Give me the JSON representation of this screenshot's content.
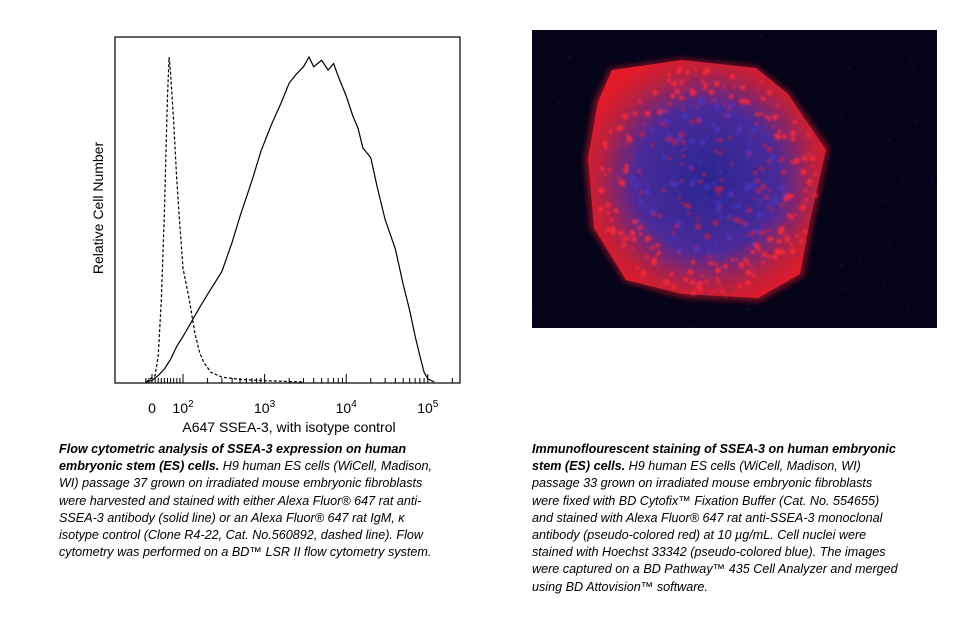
{
  "chart_data": {
    "type": "area",
    "xlabel": "A647 SSEA-3, with isotype control",
    "ylabel": "Relative Cell Number",
    "x_scale": "biexponential",
    "xlim": [
      -20,
      300000
    ],
    "ylim": [
      0,
      100
    ],
    "x_tick_labels": [
      {
        "value": 0,
        "text": "0"
      },
      {
        "value": 100,
        "base": "10",
        "exp": "2"
      },
      {
        "value": 1000,
        "base": "10",
        "exp": "3"
      },
      {
        "value": 10000,
        "base": "10",
        "exp": "4"
      },
      {
        "value": 100000,
        "base": "10",
        "exp": "5"
      }
    ],
    "grid": false,
    "series": [
      {
        "style": "solid",
        "points": [
          [
            -20,
            0
          ],
          [
            0,
            0.5
          ],
          [
            20,
            2
          ],
          [
            40,
            4
          ],
          [
            60,
            7
          ],
          [
            80,
            11
          ],
          [
            100,
            14
          ],
          [
            130,
            19
          ],
          [
            160,
            23
          ],
          [
            200,
            27
          ],
          [
            300,
            34
          ],
          [
            400,
            43
          ],
          [
            500,
            51
          ],
          [
            700,
            62
          ],
          [
            900,
            71
          ],
          [
            1200,
            79
          ],
          [
            1600,
            86
          ],
          [
            2000,
            92
          ],
          [
            2500,
            95
          ],
          [
            3000,
            97
          ],
          [
            3500,
            100
          ],
          [
            4000,
            97
          ],
          [
            5000,
            99
          ],
          [
            6000,
            96
          ],
          [
            7000,
            98
          ],
          [
            8000,
            94
          ],
          [
            10000,
            88
          ],
          [
            12000,
            82
          ],
          [
            14000,
            78
          ],
          [
            16000,
            72
          ],
          [
            20000,
            69
          ],
          [
            24000,
            60
          ],
          [
            30000,
            50
          ],
          [
            40000,
            41
          ],
          [
            50000,
            30
          ],
          [
            60000,
            22
          ],
          [
            70000,
            14
          ],
          [
            80000,
            8
          ],
          [
            90000,
            3
          ],
          [
            100000,
            1
          ],
          [
            120000,
            0
          ]
        ]
      },
      {
        "style": "dashed",
        "points": [
          [
            -20,
            0
          ],
          [
            10,
            2
          ],
          [
            20,
            8
          ],
          [
            30,
            25
          ],
          [
            40,
            52
          ],
          [
            45,
            70
          ],
          [
            50,
            88
          ],
          [
            55,
            100
          ],
          [
            60,
            95
          ],
          [
            70,
            80
          ],
          [
            80,
            62
          ],
          [
            90,
            48
          ],
          [
            100,
            35
          ],
          [
            120,
            25
          ],
          [
            140,
            15
          ],
          [
            160,
            9
          ],
          [
            180,
            6
          ],
          [
            220,
            3
          ],
          [
            300,
            1.5
          ],
          [
            500,
            0.8
          ],
          [
            1000,
            0.4
          ],
          [
            3000,
            0
          ]
        ]
      }
    ]
  },
  "captions": {
    "left": {
      "title": "Flow cytometric analysis of SSEA-3 expression on human embryonic stem (ES) cells.",
      "body": "H9 human ES cells (WiCell, Madison, WI) passage 37 grown on irradiated mouse embryonic fibroblasts were harvested and stained with either Alexa Fluor® 647 rat anti-SSEA-3 antibody (solid line) or an Alexa Fluor® 647 rat IgM, κ isotype control (Clone R4-22, Cat. No.560892, dashed line). Flow cytometry was performed on a BD™ LSR II flow cytometry system."
    },
    "right": {
      "title": "Immunoflourescent staining of SSEA-3 on human embryonic stem (ES) cells.",
      "body": "H9 human ES cells (WiCell, Madison, WI) passage 33 grown on irradiated mouse embryonic fibroblasts were fixed with BD Cytofix™ Fixation Buffer (Cat. No. 554655) and stained with Alexa Fluor® 647 rat anti-SSEA-3 monoclonal antibody (pseudo-colored red) at 10 µg/mL. Cell nuclei were stained with Hoechst 33342 (pseudo-colored blue). The images were captured on a BD Pathway™ 435 Cell Analyzer and merged using BD Attovision™ software."
    }
  },
  "image": {
    "description_colors": {
      "background": "#050418",
      "stain": "#e0182a",
      "nuclei": "#3a2fb0"
    }
  }
}
